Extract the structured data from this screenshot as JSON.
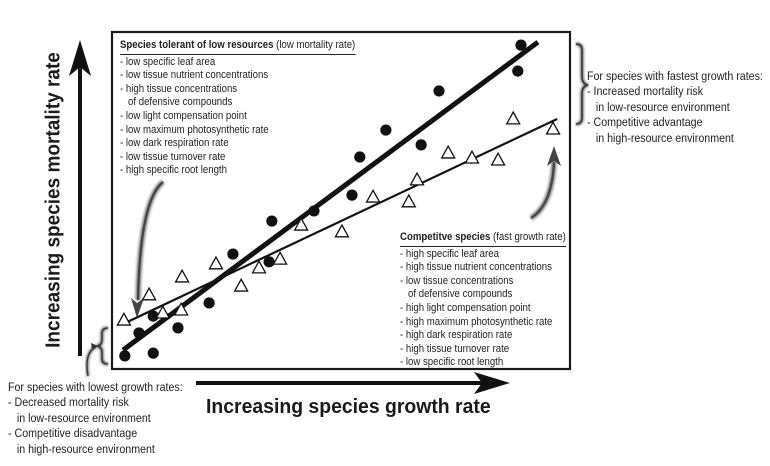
{
  "chart_data": {
    "type": "scatter",
    "title": "",
    "xlabel": "Increasing species growth rate",
    "ylabel": "Increasing species mortality rate",
    "xlim": [
      0,
      100
    ],
    "ylim": [
      0,
      100
    ],
    "grid": false,
    "axis_ticks": "none (conceptual axes)",
    "series": [
      {
        "name": "filled-circles",
        "marker": "filled-circle",
        "color": "#111111",
        "points": [
          [
            2.8,
            3.9
          ],
          [
            9.0,
            4.7
          ],
          [
            5.9,
            10.7
          ],
          [
            9.0,
            15.7
          ],
          [
            14.4,
            12.2
          ],
          [
            21.2,
            19.6
          ],
          [
            26.4,
            34.1
          ],
          [
            34.3,
            31.8
          ],
          [
            34.9,
            43.9
          ],
          [
            44.1,
            46.9
          ],
          [
            52.4,
            51.6
          ],
          [
            54.1,
            62.9
          ],
          [
            59.8,
            70.9
          ],
          [
            67.5,
            66.5
          ],
          [
            71.4,
            82.5
          ],
          [
            88.6,
            88.4
          ],
          [
            89.3,
            96.1
          ]
        ],
        "fit_line": {
          "style": "thick",
          "from": [
            2.4,
            5.6
          ],
          "to": [
            93.0,
            97.0
          ]
        }
      },
      {
        "name": "open-triangles",
        "marker": "open-triangle",
        "color": "#111111",
        "points": [
          [
            2.6,
            14.5
          ],
          [
            8.1,
            22.0
          ],
          [
            11.1,
            16.6
          ],
          [
            15.1,
            17.5
          ],
          [
            15.3,
            27.3
          ],
          [
            22.7,
            31.2
          ],
          [
            28.2,
            24.6
          ],
          [
            32.1,
            30.0
          ],
          [
            36.7,
            32.6
          ],
          [
            41.3,
            42.7
          ],
          [
            50.2,
            40.7
          ],
          [
            57.0,
            51.0
          ],
          [
            64.8,
            49.6
          ],
          [
            66.6,
            56.1
          ],
          [
            73.4,
            64.1
          ],
          [
            78.6,
            62.6
          ],
          [
            84.3,
            62.0
          ],
          [
            87.6,
            74.2
          ],
          [
            96.3,
            71.2
          ]
        ],
        "fit_line": {
          "style": "thin",
          "from": [
            2.8,
            13.6
          ],
          "to": [
            97.2,
            74.2
          ]
        }
      }
    ],
    "annotations": [
      {
        "id": "tolerant",
        "heading_bold": "Species tolerant of low resources",
        "heading_rest": "(low mortality rate)",
        "items": [
          "- low specific leaf area",
          "- low tissue nutrient concentrations",
          "- high tissue concentrations",
          "  of defensive compounds",
          "- low light compensation point",
          "- low maximum photosynthetic rate",
          "- low dark respiration rate",
          "- low tissue turnover rate",
          "- high specific root length"
        ],
        "arrow_to": "lower-left end of fit lines"
      },
      {
        "id": "competitive",
        "heading_bold": "Competitve species",
        "heading_rest": "(fast growth rate)",
        "items": [
          "- high specific leaf area",
          "- high tissue nutrient concentrations",
          "- low tissue concentrations",
          "  of defensive compounds",
          "- high light compensation point",
          "- high maximum photosynthetic rate",
          "- high dark respiration rate",
          "- high tissue turnover rate",
          "- low specific root length"
        ],
        "arrow_to": "upper-right end of fit lines"
      }
    ],
    "side_notes": [
      {
        "id": "fastest",
        "lines": [
          "For species with fastest growth rates:",
          "- Increased mortality risk",
          "  in low-resource environment",
          "- Competitive advantage",
          "  in high-resource environment"
        ]
      },
      {
        "id": "lowest",
        "lines": [
          "For species with lowest growth rates:",
          "- Decreased mortality risk",
          "  in low-resource environment",
          "- Competitive disadvantage",
          "  in high-resource environment"
        ]
      }
    ]
  }
}
